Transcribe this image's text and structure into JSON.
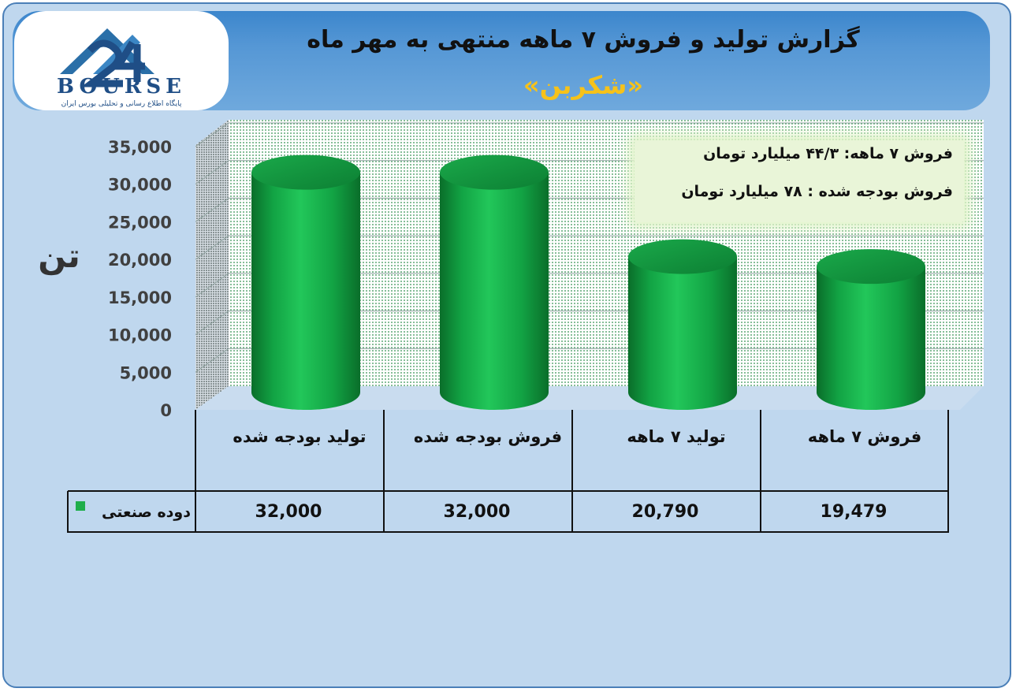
{
  "header": {
    "title": "گزارش تولید و فروش ۷ ماهه منتهی به مهر ماه",
    "subtitle": "«شکربن»"
  },
  "logo": {
    "text": "BOURSE",
    "number": "24",
    "tagline": "پایگاه اطلاع رسانی و تحلیلی بورس ایران",
    "colors": {
      "primary": "#2a6fa8",
      "dark": "#1f4e86"
    }
  },
  "unit_label": "تن",
  "info_box": {
    "line1": "فروش ۷ ماهه:  ۴۴/۳ میلیارد تومان",
    "line2": "فروش بودجه شده : ۷۸ میلیارد تومان"
  },
  "chart_data": {
    "type": "bar",
    "categories": [
      "تولید بودجه شده",
      "فروش بودجه شده",
      "تولید ۷ ماهه",
      "فروش ۷ ماهه"
    ],
    "series": [
      {
        "name": "دوده صنعتی",
        "values": [
          32000,
          32000,
          20790,
          19479
        ],
        "value_labels": [
          "32,000",
          "32,000",
          "20,790",
          "19,479"
        ],
        "color": "#1fae4b"
      }
    ],
    "ylim": [
      0,
      35000
    ],
    "yticks": [
      0,
      5000,
      10000,
      15000,
      20000,
      25000,
      30000,
      35000
    ],
    "ytick_labels": [
      "0",
      "5,000",
      "10,000",
      "15,000",
      "20,000",
      "25,000",
      "30,000",
      "35,000"
    ],
    "grid": true,
    "legend": "data-table"
  },
  "colors": {
    "background": "#bfd7ee",
    "header": "#5597d5",
    "bar": "#1fae4b",
    "title_accent": "#f6c21a"
  }
}
